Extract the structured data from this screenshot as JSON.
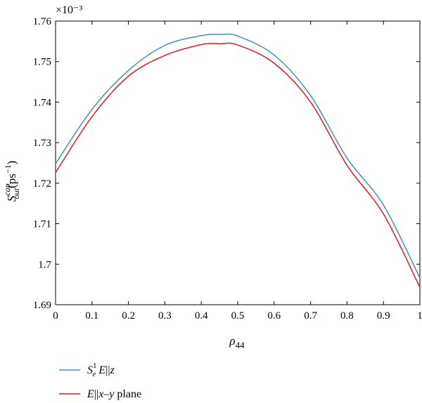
{
  "chart_data": {
    "type": "line",
    "title": "",
    "xlabel": "ρ44",
    "ylabel": "S_out^cap(ps^-1)",
    "y_multiplier": "×10⁻³",
    "xlim": [
      0,
      1
    ],
    "ylim": [
      1.69,
      1.76
    ],
    "x_ticks": [
      "0",
      "0.1",
      "0.2",
      "0.3",
      "0.4",
      "0.5",
      "0.6",
      "0.7",
      "0.8",
      "0.9",
      "1"
    ],
    "y_ticks": [
      "1.69",
      "1.7",
      "1.71",
      "1.72",
      "1.73",
      "1.74",
      "1.75",
      "1.76"
    ],
    "grid": false,
    "legend_position": "below",
    "series": [
      {
        "name": "S_e^1 E||z",
        "color": "#3d8fc4",
        "x": [
          0,
          0.1,
          0.2,
          0.3,
          0.4,
          0.45,
          0.5,
          0.6,
          0.7,
          0.8,
          0.9,
          1.0
        ],
        "y": [
          1.7248,
          1.7382,
          1.7478,
          1.754,
          1.7564,
          1.7567,
          1.7563,
          1.7516,
          1.7416,
          1.7262,
          1.7146,
          1.6966
        ]
      },
      {
        "name": "E||x–y plane",
        "color": "#e3171e",
        "x": [
          0,
          0.1,
          0.2,
          0.3,
          0.4,
          0.45,
          0.5,
          0.6,
          0.7,
          0.8,
          0.9,
          1.0
        ],
        "y": [
          1.7226,
          1.7364,
          1.7464,
          1.7515,
          1.7542,
          1.7544,
          1.7541,
          1.7496,
          1.74,
          1.7244,
          1.7124,
          1.6943
        ]
      }
    ]
  }
}
